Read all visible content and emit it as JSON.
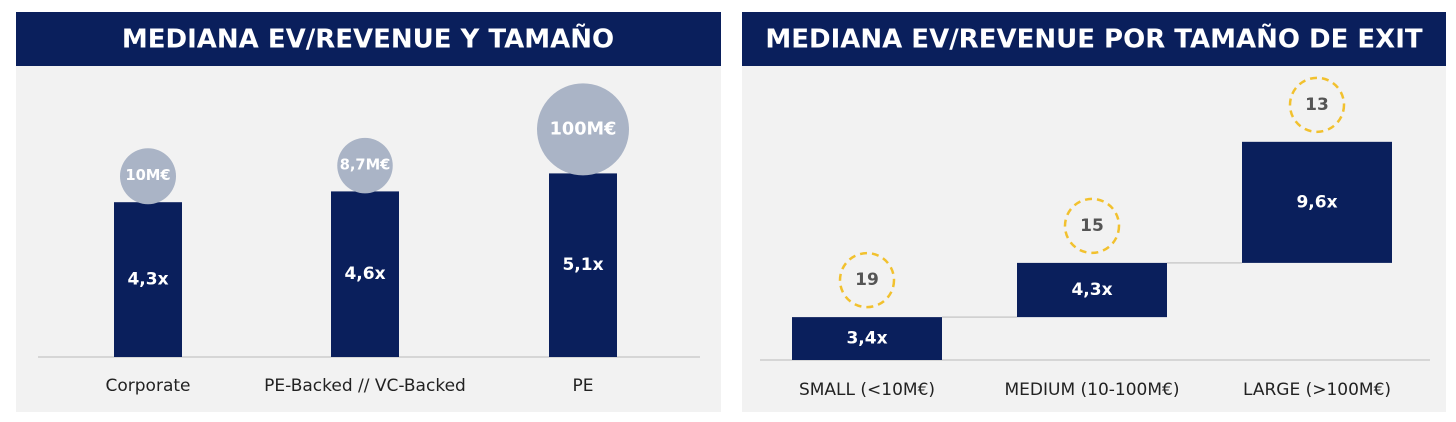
{
  "chart_data": [
    {
      "type": "bar",
      "title": "MEDIANA EV/REVENUE Y TAMAÑO",
      "categories": [
        "Corporate",
        "PE-Backed // VC-Backed",
        "PE"
      ],
      "values": [
        4.3,
        4.6,
        5.1
      ],
      "value_labels": [
        "4,3x",
        "4,6x",
        "5,1x"
      ],
      "sizes": [
        10,
        8.7,
        100
      ],
      "size_labels": [
        "10M€",
        "8,7M€",
        "100M€"
      ],
      "color": "#0a1f5c",
      "bubble_color": "#aab4c6",
      "ylim": [
        0,
        6
      ]
    },
    {
      "type": "waterfall",
      "title": "MEDIANA EV/REVENUE POR TAMAÑO DE EXIT",
      "categories": [
        "SMALL (<10M€)",
        "MEDIUM (10-100M€)",
        "LARGE (>100M€)"
      ],
      "values": [
        3.4,
        4.3,
        9.6
      ],
      "value_labels": [
        "3,4x",
        "4,3x",
        "9,6x"
      ],
      "counts": [
        19,
        15,
        13
      ],
      "color": "#0a1f5c",
      "circle_color": "#f2c12e",
      "ylim": [
        0,
        18
      ]
    }
  ]
}
